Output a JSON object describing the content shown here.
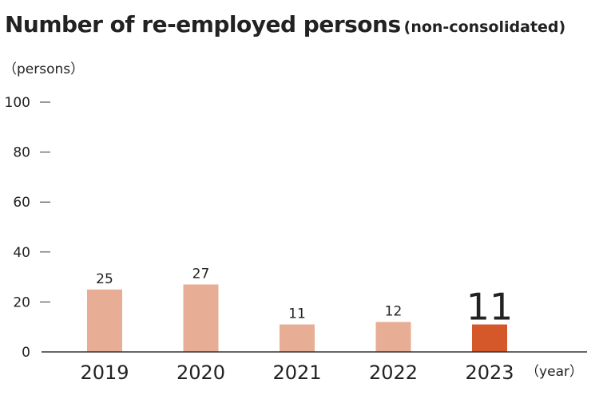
{
  "chart_data": {
    "type": "bar",
    "title": "Number of re-employed persons",
    "subtitle": "(non-consolidated)",
    "ylabel": "（persons）",
    "xlabel": "（year）",
    "categories": [
      "2019",
      "2020",
      "2021",
      "2022",
      "2023"
    ],
    "values": [
      25,
      27,
      11,
      12,
      11
    ],
    "ylim": [
      0,
      100
    ],
    "yticks": [
      0,
      20,
      40,
      60,
      80,
      100
    ],
    "highlight_index": 4,
    "colors": {
      "bar": "#e8ae95",
      "highlight": "#d4582a",
      "axis": "#333333",
      "text": "#222222"
    },
    "grid": false,
    "legend": "none"
  }
}
